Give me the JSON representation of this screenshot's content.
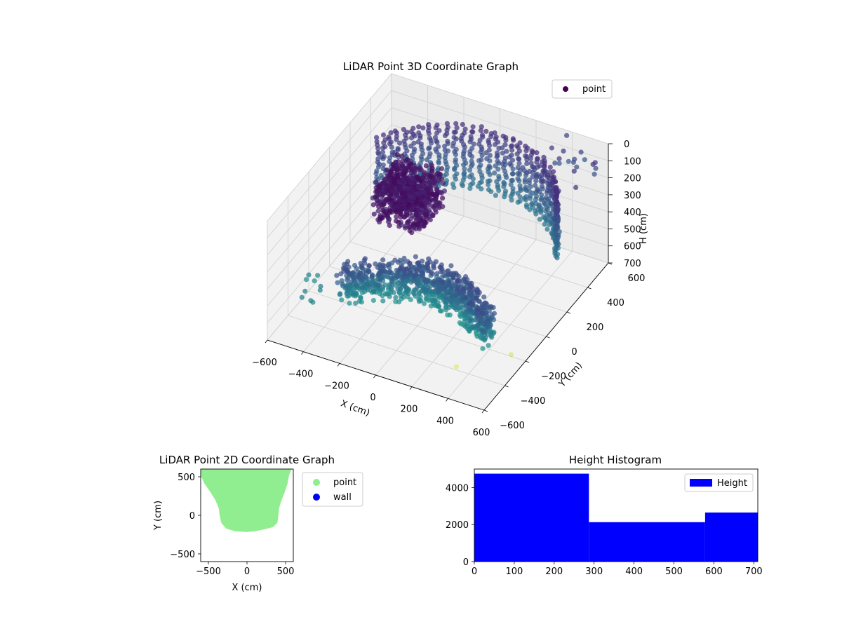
{
  "chart_data": [
    {
      "type": "scatter",
      "projection": "3d",
      "title": "LiDAR Point 3D Coordinate Graph",
      "xlabel": "X (cm)",
      "ylabel": "Y (cm)",
      "zlabel": "H (cm)",
      "xlim": [
        -600,
        600
      ],
      "ylim": [
        -600,
        600
      ],
      "zlim": [
        700,
        0
      ],
      "z_inverted": true,
      "x_ticks": [
        "−600",
        "−400",
        "−200",
        "0",
        "200",
        "400",
        "600"
      ],
      "y_ticks": [
        "−600",
        "−400",
        "−200",
        "0",
        "200",
        "400",
        "600"
      ],
      "z_ticks": [
        "0",
        "100",
        "200",
        "300",
        "400",
        "500",
        "600",
        "700"
      ],
      "colormap": "viridis",
      "legend": {
        "entries": [
          "point"
        ],
        "position": "upper-right"
      },
      "grid": true,
      "series": [
        {
          "name": "point",
          "description_points": [
            {
              "x": -450,
              "y": 400,
              "h": 300
            },
            {
              "x": -300,
              "y": 450,
              "h": 250
            },
            {
              "x": -150,
              "y": 500,
              "h": 200
            },
            {
              "x": 0,
              "y": 520,
              "h": 180
            },
            {
              "x": 150,
              "y": 500,
              "h": 200
            },
            {
              "x": 300,
              "y": 450,
              "h": 250
            },
            {
              "x": 450,
              "y": 380,
              "h": 300
            },
            {
              "x": -350,
              "y": -100,
              "h": 500
            },
            {
              "x": 0,
              "y": -150,
              "h": 550
            },
            {
              "x": 350,
              "y": -80,
              "h": 520
            },
            {
              "x": 550,
              "y": 550,
              "h": 100
            },
            {
              "x": 500,
              "y": 600,
              "h": 50
            },
            {
              "x": -500,
              "y": -300,
              "h": 650
            },
            {
              "x": 300,
              "y": 200,
              "h": 680
            },
            {
              "x": 400,
              "y": 0,
              "h": 700
            }
          ]
        }
      ]
    },
    {
      "type": "scatter",
      "title": "LiDAR Point 2D Coordinate Graph",
      "xlabel": "X (cm)",
      "ylabel": "Y (cm)",
      "xlim": [
        -600,
        600
      ],
      "ylim": [
        -600,
        600
      ],
      "x_ticks": [
        -500,
        0,
        500
      ],
      "y_ticks": [
        -500,
        0,
        500
      ],
      "legend": {
        "entries": [
          "point",
          "wall"
        ],
        "position": "outside-right"
      },
      "series": [
        {
          "name": "point",
          "color": "#90ee90",
          "region_outline": [
            [
              -580,
              600
            ],
            [
              -560,
              520
            ],
            [
              -520,
              430
            ],
            [
              -450,
              330
            ],
            [
              -380,
              220
            ],
            [
              -330,
              100
            ],
            [
              -320,
              20
            ],
            [
              -300,
              -80
            ],
            [
              -250,
              -140
            ],
            [
              -150,
              -170
            ],
            [
              0,
              -180
            ],
            [
              100,
              -170
            ],
            [
              200,
              -150
            ],
            [
              320,
              -120
            ],
            [
              360,
              -80
            ],
            [
              370,
              0
            ],
            [
              380,
              100
            ],
            [
              410,
              200
            ],
            [
              450,
              300
            ],
            [
              490,
              420
            ],
            [
              510,
              530
            ],
            [
              540,
              600
            ]
          ]
        },
        {
          "name": "wall",
          "color": "#0000ee",
          "points": []
        }
      ]
    },
    {
      "type": "bar",
      "subtype": "histogram",
      "title": "Height Histogram",
      "xlim": [
        0,
        710
      ],
      "ylim": [
        0,
        5000
      ],
      "x_ticks": [
        0,
        100,
        200,
        300,
        400,
        500,
        600,
        700
      ],
      "y_ticks": [
        0,
        2000,
        4000
      ],
      "color": "#0000ff",
      "legend": {
        "entries": [
          "Height"
        ],
        "position": "upper-right"
      },
      "bins": [
        {
          "start": 0,
          "end": 287,
          "count": 4750
        },
        {
          "start": 287,
          "end": 578,
          "count": 2130
        },
        {
          "start": 578,
          "end": 710,
          "count": 2650
        }
      ]
    }
  ]
}
